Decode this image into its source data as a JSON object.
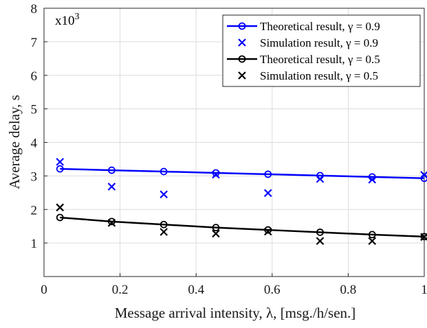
{
  "chart_data": {
    "type": "line",
    "xlabel": "Message arrival intensity, λ, [msg./h/sen.]",
    "ylabel": "Average delay, s",
    "y_multiplier": "x10",
    "y_multiplier_exp": "3",
    "xlim": [
      0,
      1
    ],
    "ylim": [
      0,
      8
    ],
    "xticks": [
      0,
      0.2,
      0.4,
      0.6,
      0.8,
      1
    ],
    "xtick_labels": [
      "0",
      "0.2",
      "0.4",
      "0.6",
      "0.8",
      "1"
    ],
    "yticks": [
      1,
      2,
      3,
      4,
      5,
      6,
      7,
      8
    ],
    "ytick_labels": [
      "1",
      "2",
      "3",
      "4",
      "5",
      "6",
      "7",
      "8"
    ],
    "grid": true,
    "legend_position": "top-right",
    "series": [
      {
        "name": "Theoretical result, γ = 0.9",
        "kind": "line-circle",
        "color": "#0000ff",
        "x": [
          0.042,
          0.178,
          0.315,
          0.452,
          0.589,
          0.726,
          0.863,
          1.0
        ],
        "y": [
          3.21,
          3.17,
          3.13,
          3.09,
          3.05,
          3.01,
          2.97,
          2.93
        ]
      },
      {
        "name": "Simulation result, γ = 0.9",
        "kind": "cross",
        "color": "#0000ff",
        "x": [
          0.042,
          0.178,
          0.315,
          0.452,
          0.589,
          0.726,
          0.863,
          1.0
        ],
        "y": [
          3.42,
          2.68,
          2.45,
          3.04,
          2.49,
          2.91,
          2.89,
          3.03
        ]
      },
      {
        "name": "Theoretical result, γ = 0.5",
        "kind": "line-circle",
        "color": "#000000",
        "x": [
          0.042,
          0.178,
          0.315,
          0.452,
          0.589,
          0.726,
          0.863,
          1.0
        ],
        "y": [
          1.76,
          1.64,
          1.55,
          1.46,
          1.39,
          1.32,
          1.25,
          1.19
        ]
      },
      {
        "name": "Simulation result, γ = 0.5",
        "kind": "cross",
        "color": "#000000",
        "x": [
          0.042,
          0.178,
          0.315,
          0.452,
          0.589,
          0.726,
          0.863,
          1.0
        ],
        "y": [
          2.06,
          1.6,
          1.33,
          1.28,
          1.34,
          1.06,
          1.06,
          1.18
        ]
      }
    ]
  }
}
